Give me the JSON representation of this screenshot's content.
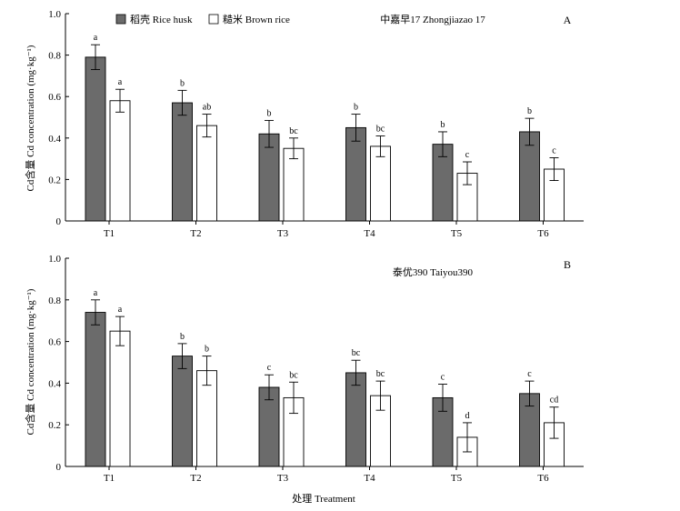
{
  "figure": {
    "xlabel": "处理 Treatment",
    "ylabel": "Cd含量 Cd concentration (mg·kg⁻¹)"
  },
  "legend": {
    "position": "top-left",
    "items": [
      {
        "label": "稻壳 Rice husk",
        "color": "#6b6b6b"
      },
      {
        "label": "糙米 Brown rice",
        "color": "#ffffff"
      }
    ]
  },
  "colors": {
    "rice_husk": "#6b6b6b",
    "brown_rice": "#ffffff",
    "stroke": "#000000"
  },
  "chart_data": [
    {
      "type": "bar",
      "panel": "A",
      "subtitle": "中嘉早17 Zhongjiazao 17",
      "categories": [
        "T1",
        "T2",
        "T3",
        "T4",
        "T5",
        "T6"
      ],
      "ylim": [
        0,
        1.0
      ],
      "yticks": [
        "0",
        "0.2",
        "0.4",
        "0.6",
        "0.8",
        "1.0"
      ],
      "ylabel": "Cd含量 Cd concentration (mg·kg⁻¹)",
      "grid": false,
      "series": [
        {
          "name": "稻壳 Rice husk",
          "values": [
            0.79,
            0.57,
            0.42,
            0.45,
            0.37,
            0.43
          ],
          "errors": [
            0.06,
            0.06,
            0.065,
            0.065,
            0.06,
            0.065
          ],
          "letters": [
            "a",
            "b",
            "b",
            "b",
            "b",
            "b"
          ]
        },
        {
          "name": "糙米 Brown rice",
          "values": [
            0.58,
            0.46,
            0.35,
            0.36,
            0.23,
            0.25
          ],
          "errors": [
            0.055,
            0.055,
            0.05,
            0.05,
            0.055,
            0.055
          ],
          "letters": [
            "a",
            "ab",
            "bc",
            "bc",
            "c",
            "c"
          ]
        }
      ]
    },
    {
      "type": "bar",
      "panel": "B",
      "subtitle": "泰优390 Taiyou390",
      "categories": [
        "T1",
        "T2",
        "T3",
        "T4",
        "T5",
        "T6"
      ],
      "ylim": [
        0,
        1.0
      ],
      "yticks": [
        "0",
        "0.2",
        "0.4",
        "0.6",
        "0.8",
        "1.0"
      ],
      "ylabel": "Cd含量 Cd concentration (mg·kg⁻¹)",
      "xlabel": "处理 Treatment",
      "grid": false,
      "series": [
        {
          "name": "稻壳 Rice husk",
          "values": [
            0.74,
            0.53,
            0.38,
            0.45,
            0.33,
            0.35
          ],
          "errors": [
            0.06,
            0.06,
            0.06,
            0.06,
            0.065,
            0.06
          ],
          "letters": [
            "a",
            "b",
            "c",
            "bc",
            "c",
            "c"
          ]
        },
        {
          "name": "糙米 Brown rice",
          "values": [
            0.65,
            0.46,
            0.33,
            0.34,
            0.14,
            0.21
          ],
          "errors": [
            0.07,
            0.07,
            0.075,
            0.07,
            0.07,
            0.075
          ],
          "letters": [
            "a",
            "b",
            "bc",
            "bc",
            "d",
            "cd"
          ]
        }
      ]
    }
  ]
}
